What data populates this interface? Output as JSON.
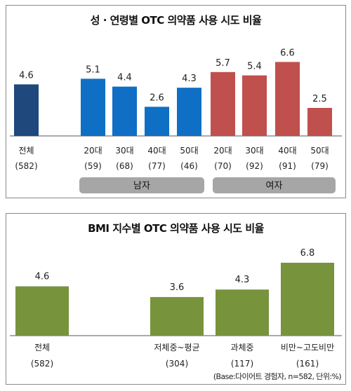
{
  "chart_data": [
    {
      "type": "bar",
      "title": "성 · 연령별 OTC 의약품 사용 시도 비율",
      "categories": [
        {
          "label": "전체",
          "n": "(582)"
        },
        {
          "label": "20대",
          "n": "(59)"
        },
        {
          "label": "30대",
          "n": "(68)"
        },
        {
          "label": "40대",
          "n": "(77)"
        },
        {
          "label": "50대",
          "n": "(46)"
        },
        {
          "label": "20대",
          "n": "(70)"
        },
        {
          "label": "30대",
          "n": "(92)"
        },
        {
          "label": "40대",
          "n": "(91)"
        },
        {
          "label": "50대",
          "n": "(79)"
        }
      ],
      "values": [
        4.6,
        5.1,
        4.4,
        2.6,
        4.3,
        5.7,
        5.4,
        6.6,
        2.5
      ],
      "value_labels": [
        "4.6",
        "5.1",
        "4.4",
        "2.6",
        "4.3",
        "5.7",
        "5.4",
        "6.6",
        "2.5"
      ],
      "groups": [
        {
          "label": "남자",
          "members": [
            1,
            2,
            3,
            4
          ],
          "color": "#0e6fc5"
        },
        {
          "label": "여자",
          "members": [
            5,
            6,
            7,
            8
          ],
          "color": "#c0504d"
        }
      ],
      "total_color": "#1f497d",
      "ylim": [
        0,
        7.5
      ],
      "grid": false,
      "legend": "none"
    },
    {
      "type": "bar",
      "title": "BMI 지수별 OTC 의약품 사용 시도 비율",
      "categories": [
        {
          "label": "전체",
          "n": "(582)"
        },
        {
          "label": "저체중~평균",
          "n": "(304)"
        },
        {
          "label": "과체중",
          "n": "(117)"
        },
        {
          "label": "비만~고도비만",
          "n": "(161)"
        }
      ],
      "values": [
        4.6,
        3.6,
        4.3,
        6.8
      ],
      "value_labels": [
        "4.6",
        "3.6",
        "4.3",
        "6.8"
      ],
      "color": "#77933c",
      "ylim": [
        0,
        7.5
      ],
      "grid": false,
      "legend": "none"
    }
  ],
  "footnote": "(Base:다이어트 경험자, n=582, 단위:%)"
}
